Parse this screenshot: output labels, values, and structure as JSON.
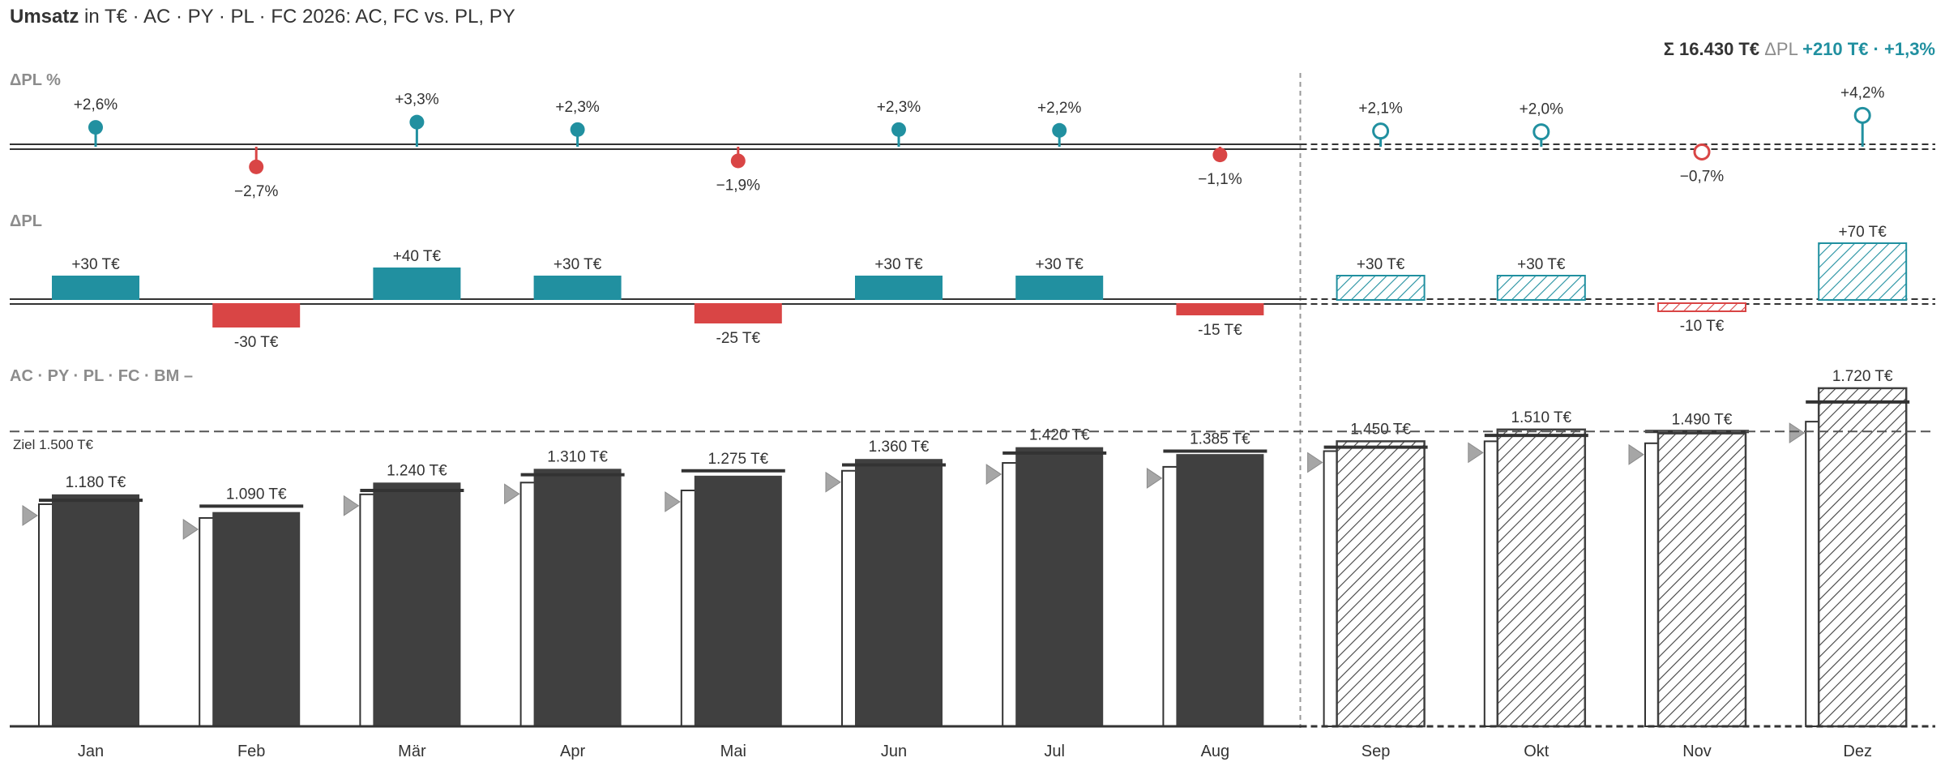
{
  "header": {
    "title_bold": "Umsatz",
    "title_rest": " in T€ · AC · PY · PL · FC 2026: AC, FC vs. PL, PY",
    "summary_total": "Σ 16.430 T€",
    "summary_delta_label": " ΔPL ",
    "summary_delta_value": "+210 T€ · +1,3%"
  },
  "sections": {
    "pct_title": "ΔPL %",
    "abs_title": "ΔPL",
    "main_title": "AC · PY · PL · FC · BM –"
  },
  "target": {
    "label": "Ziel 1.500 T€",
    "value": 1500
  },
  "colors": {
    "positive": "#2190a0",
    "negative": "#d94545",
    "actual": "#404040",
    "axis": "#333333",
    "target_line": "#555555",
    "separator": "#999999",
    "py_marker": "#a6a6a6"
  },
  "chart_data": {
    "type": "bar",
    "months": [
      "Jan",
      "Feb",
      "Mär",
      "Apr",
      "Mai",
      "Jun",
      "Jul",
      "Aug",
      "Sep",
      "Okt",
      "Nov",
      "Dez"
    ],
    "scenario": [
      "AC",
      "AC",
      "AC",
      "AC",
      "AC",
      "AC",
      "AC",
      "AC",
      "FC",
      "FC",
      "FC",
      "FC"
    ],
    "value_labels": [
      "1.180 T€",
      "1.090 T€",
      "1.240 T€",
      "1.310 T€",
      "1.275 T€",
      "1.360 T€",
      "1.420 T€",
      "1.385 T€",
      "1.450 T€",
      "1.510 T€",
      "1.490 T€",
      "1.720 T€"
    ],
    "values": [
      1180,
      1090,
      1240,
      1310,
      1275,
      1360,
      1420,
      1385,
      1450,
      1510,
      1490,
      1720
    ],
    "pl": [
      1150,
      1120,
      1200,
      1280,
      1300,
      1330,
      1390,
      1400,
      1420,
      1480,
      1500,
      1650
    ],
    "py": [
      1130,
      1060,
      1180,
      1240,
      1200,
      1300,
      1340,
      1320,
      1400,
      1450,
      1440,
      1550
    ],
    "delta_pl": [
      30,
      -30,
      40,
      30,
      -25,
      30,
      30,
      -15,
      30,
      30,
      -10,
      70
    ],
    "delta_pl_labels": [
      "+30 T€",
      "-30 T€",
      "+40 T€",
      "+30 T€",
      "-25 T€",
      "+30 T€",
      "+30 T€",
      "-15 T€",
      "+30 T€",
      "+30 T€",
      "-10 T€",
      "+70 T€"
    ],
    "delta_pl_pct": [
      2.6,
      -2.7,
      3.3,
      2.3,
      -1.9,
      2.3,
      2.2,
      -1.1,
      2.1,
      2.0,
      -0.7,
      4.2
    ],
    "delta_pl_pct_labels": [
      "+2,6%",
      "−2,7%",
      "+3,3%",
      "+2,3%",
      "−1,9%",
      "+2,3%",
      "+2,2%",
      "−1,1%",
      "+2,1%",
      "+2,0%",
      "−0,7%",
      "+4,2%"
    ],
    "ylim": [
      0,
      1750
    ]
  }
}
